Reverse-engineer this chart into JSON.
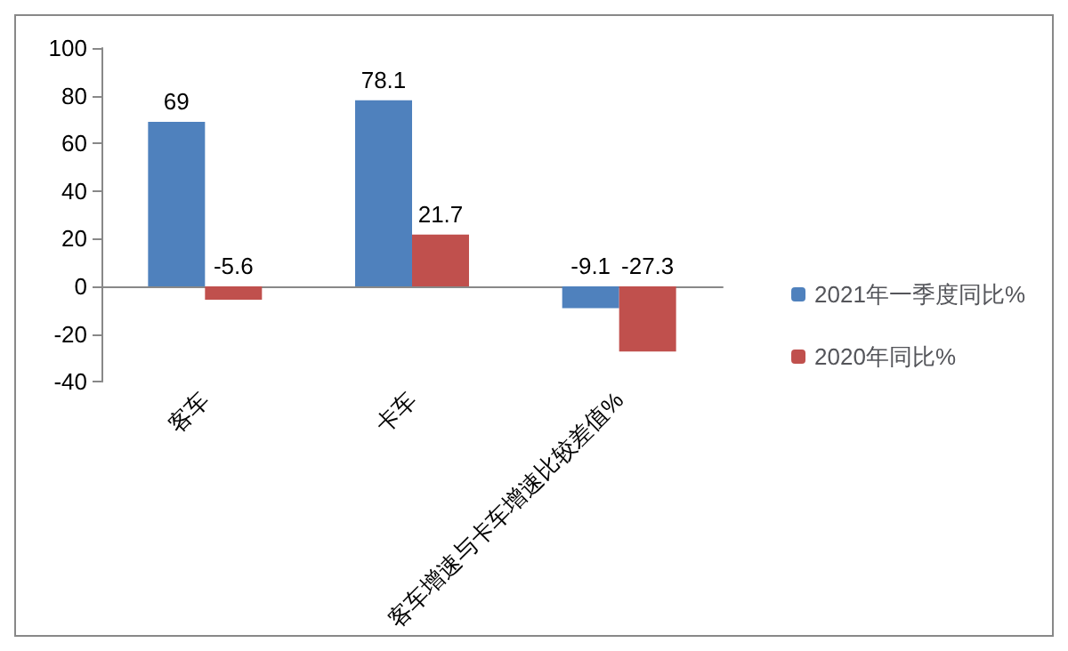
{
  "chart_data": {
    "type": "bar",
    "categories": [
      "客车",
      "卡车",
      "客车增速与卡车增速比较差值%"
    ],
    "series": [
      {
        "name": "2021年一季度同比%",
        "color": "#4f81bd",
        "values": [
          69,
          78.1,
          -9.1
        ]
      },
      {
        "name": "2020年同比%",
        "color": "#c0504d",
        "values": [
          -5.6,
          21.7,
          -27.3
        ]
      }
    ],
    "ylim": [
      -40,
      100
    ],
    "yticks": [
      -40,
      -20,
      0,
      20,
      40,
      60,
      80,
      100
    ],
    "legend": "right",
    "data_labels": true
  }
}
